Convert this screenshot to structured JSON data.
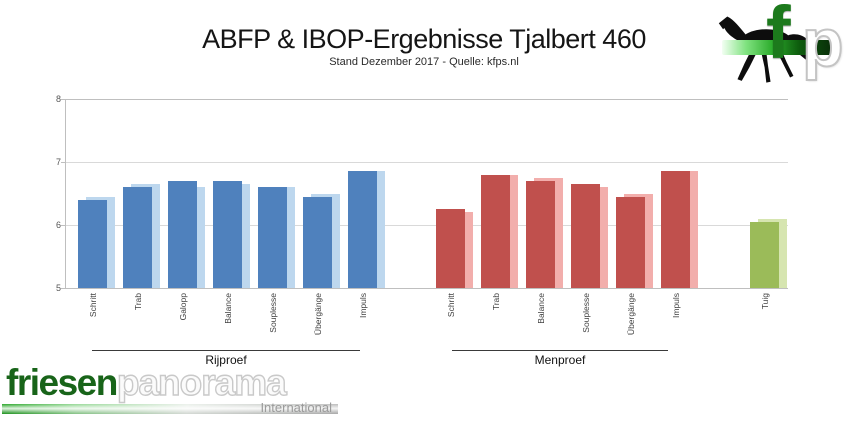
{
  "header": {
    "title": "ABFP & IBOP-Ergebnisse Tjalbert 460",
    "subtitle": "Stand Dezember 2017 - Quelle: kfps.nl"
  },
  "chart_data": {
    "type": "bar",
    "title": "ABFP & IBOP-Ergebnisse Tjalbert 460",
    "subtitle": "Stand Dezember 2017 - Quelle: kfps.nl",
    "ylim": [
      5,
      8
    ],
    "yticks": [
      8,
      7,
      6,
      5
    ],
    "grid": true,
    "legend": "none",
    "bar_style": "front bar with lighter offset bar behind",
    "groups": [
      {
        "label": "Rijproef",
        "front_color": "#4f81bd",
        "back_color": "#bdd7ee",
        "categories": [
          "Schritt",
          "Trab",
          "Galopp",
          "Balance",
          "Souplesse",
          "Übergänge",
          "Impuls"
        ],
        "series": [
          {
            "name": "front",
            "values": [
              6.4,
              6.6,
              6.7,
              6.7,
              6.6,
              6.45,
              6.85
            ]
          },
          {
            "name": "back",
            "values": [
              6.45,
              6.65,
              6.6,
              6.65,
              6.6,
              6.5,
              6.85
            ]
          }
        ]
      },
      {
        "label": "Menproef",
        "front_color": "#c0504d",
        "back_color": "#f2aeac",
        "categories": [
          "Schritt",
          "Trab",
          "Balance",
          "Souplesse",
          "Übergänge",
          "Impuls"
        ],
        "series": [
          {
            "name": "front",
            "values": [
              6.25,
              6.8,
              6.7,
              6.65,
              6.45,
              6.85
            ]
          },
          {
            "name": "back",
            "values": [
              6.2,
              6.8,
              6.75,
              6.6,
              6.5,
              6.85
            ]
          }
        ]
      },
      {
        "label": "",
        "front_color": "#9bbb59",
        "back_color": "#d6e5b0",
        "categories": [
          "Tuig"
        ],
        "series": [
          {
            "name": "front",
            "values": [
              6.05
            ]
          },
          {
            "name": "back",
            "values": [
              6.1
            ]
          }
        ]
      }
    ]
  },
  "fp_logo": {
    "letter_f": "f",
    "letter_p": "p",
    "icon": "friesian-horse-icon",
    "green": "#1c7a1c"
  },
  "footer_logo": {
    "word1": "friesen",
    "word2": "panorama",
    "tagline": "International",
    "green": "#186419"
  }
}
